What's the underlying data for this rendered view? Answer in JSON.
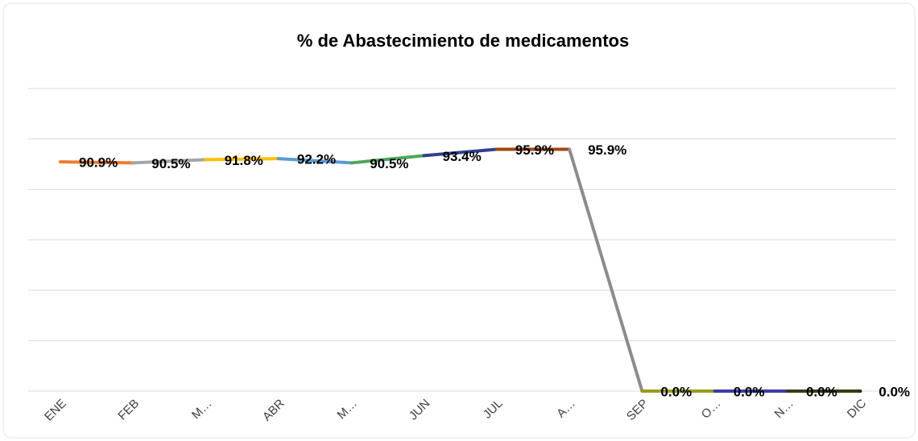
{
  "chart_data": {
    "type": "line",
    "title": "% de Abastecimiento de medicamentos",
    "categories": [
      "ENE",
      "FEB",
      "M…",
      "ABR",
      "M…",
      "JUN",
      "JUL",
      "A…",
      "SEP",
      "O…",
      "N…",
      "DIC"
    ],
    "series": [
      {
        "name": "% de Abastecimiento de medicamentos",
        "colors": [
          "#ed7d31",
          "#a5a5a5",
          "#ffc000",
          "#5b9bd5",
          "#4ea65a",
          "#2f3f91",
          "#9e480e",
          "#8c8c8c",
          "#9a9a20",
          "#3b3ba8",
          "#3a3a12",
          "#2e2e10"
        ],
        "values": [
          90.9,
          90.5,
          91.8,
          92.2,
          90.5,
          93.4,
          95.9,
          95.9,
          0,
          0,
          0,
          0
        ],
        "value_labels": [
          "90.9%",
          "90.5%",
          "91.8%",
          "92.2%",
          "90.5%",
          "93.4%",
          "95.9%",
          "95.9%",
          "0.0%",
          "0.0%",
          "0.0%",
          "0.0%"
        ]
      }
    ],
    "ylim": [
      0,
      120
    ],
    "yticks": [
      0,
      20,
      40,
      60,
      80,
      100,
      120
    ],
    "grid": true
  }
}
